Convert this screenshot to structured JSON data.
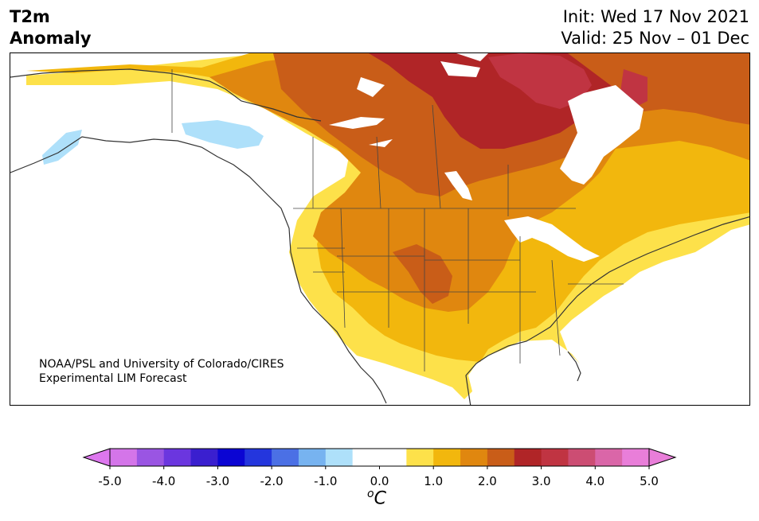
{
  "title": {
    "line1": "T2m",
    "line2": "Anomaly"
  },
  "dates": {
    "init": "Init: Wed 17 Nov 2021",
    "valid": "Valid: 25 Nov – 01 Dec"
  },
  "credit": {
    "line1": "NOAA/PSL and University of Colorado/CIRES",
    "line2": "Experimental LIM Forecast"
  },
  "colorbar": {
    "unit_sup": "o",
    "unit": "C",
    "ticks": [
      "-5.0",
      "-4.0",
      "-3.0",
      "-2.0",
      "-1.0",
      "0.0",
      "1.0",
      "2.0",
      "3.0",
      "4.0",
      "5.0"
    ],
    "colors": [
      "#d475e9",
      "#9a55e3",
      "#6b36df",
      "#3a1fcf",
      "#0b05d3",
      "#2436dd",
      "#4b70e5",
      "#77b3f0",
      "#aee0fa",
      "#ffffff",
      "#ffffff",
      "#fde14a",
      "#f2b70d",
      "#e0870f",
      "#c95d18",
      "#b02527",
      "#c03442",
      "#cc4d73",
      "#da66a8",
      "#e97ed9"
    ],
    "under_color": "#dd77ee",
    "over_color": "#e97ed9"
  },
  "map": {
    "colors": {
      "lightblue": "#aee0fa",
      "yellow": "#fde14a",
      "gold": "#f2b70d",
      "orange": "#e0870f",
      "darkorange": "#c95d18",
      "red": "#b02527",
      "rose": "#c03442",
      "land_line": "#333333"
    }
  }
}
